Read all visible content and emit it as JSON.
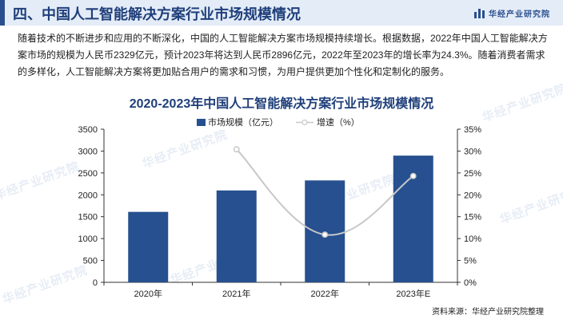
{
  "header": {
    "title": "四、中国人工智能解决方案行业市场规模情况",
    "brand": "华经产业研究院"
  },
  "intro": "随着技术的不断进步和应用的不断深化，中国的人工智能解决方案市场规模持续增长。根据数据，2022年中国人工智能解决方案市场的规模为人民币2329亿元，预计2023年将达到人民币2896亿元，2022年至2023年的增长率为24.3%。随着消费者需求的多样化，人工智能解决方案将更加贴合用户的需求和习惯，为用户提供更加个性化和定制化的服务。",
  "watermark": "华经产业研究院",
  "source": "资料来源：华经产业研究院整理",
  "colors": {
    "bar": "#26508f",
    "line": "#c8c8c8",
    "title": "#1f3f7a"
  },
  "chart_data": {
    "type": "bar",
    "title": "2020-2023年中国人工智能解决方案行业市场规模情况",
    "categories": [
      "2020年",
      "2021年",
      "2022年",
      "2023年E"
    ],
    "series": [
      {
        "name": "市场规模（亿元）",
        "type": "bar",
        "axis": "left",
        "values": [
          1610,
          2100,
          2329,
          2896
        ]
      },
      {
        "name": "增速（%）",
        "type": "line",
        "axis": "right",
        "values": [
          null,
          30.4,
          10.9,
          24.3
        ]
      }
    ],
    "y_left": {
      "min": 0,
      "max": 3500,
      "step": 500,
      "ticks": [
        "0",
        "500",
        "1000",
        "1500",
        "2000",
        "2500",
        "3000",
        "3500"
      ]
    },
    "y_right": {
      "min": 0,
      "max": 35,
      "step": 5,
      "ticks": [
        "0%",
        "5%",
        "10%",
        "15%",
        "20%",
        "25%",
        "30%",
        "35%"
      ]
    },
    "grid": false,
    "legend": "top-center"
  }
}
